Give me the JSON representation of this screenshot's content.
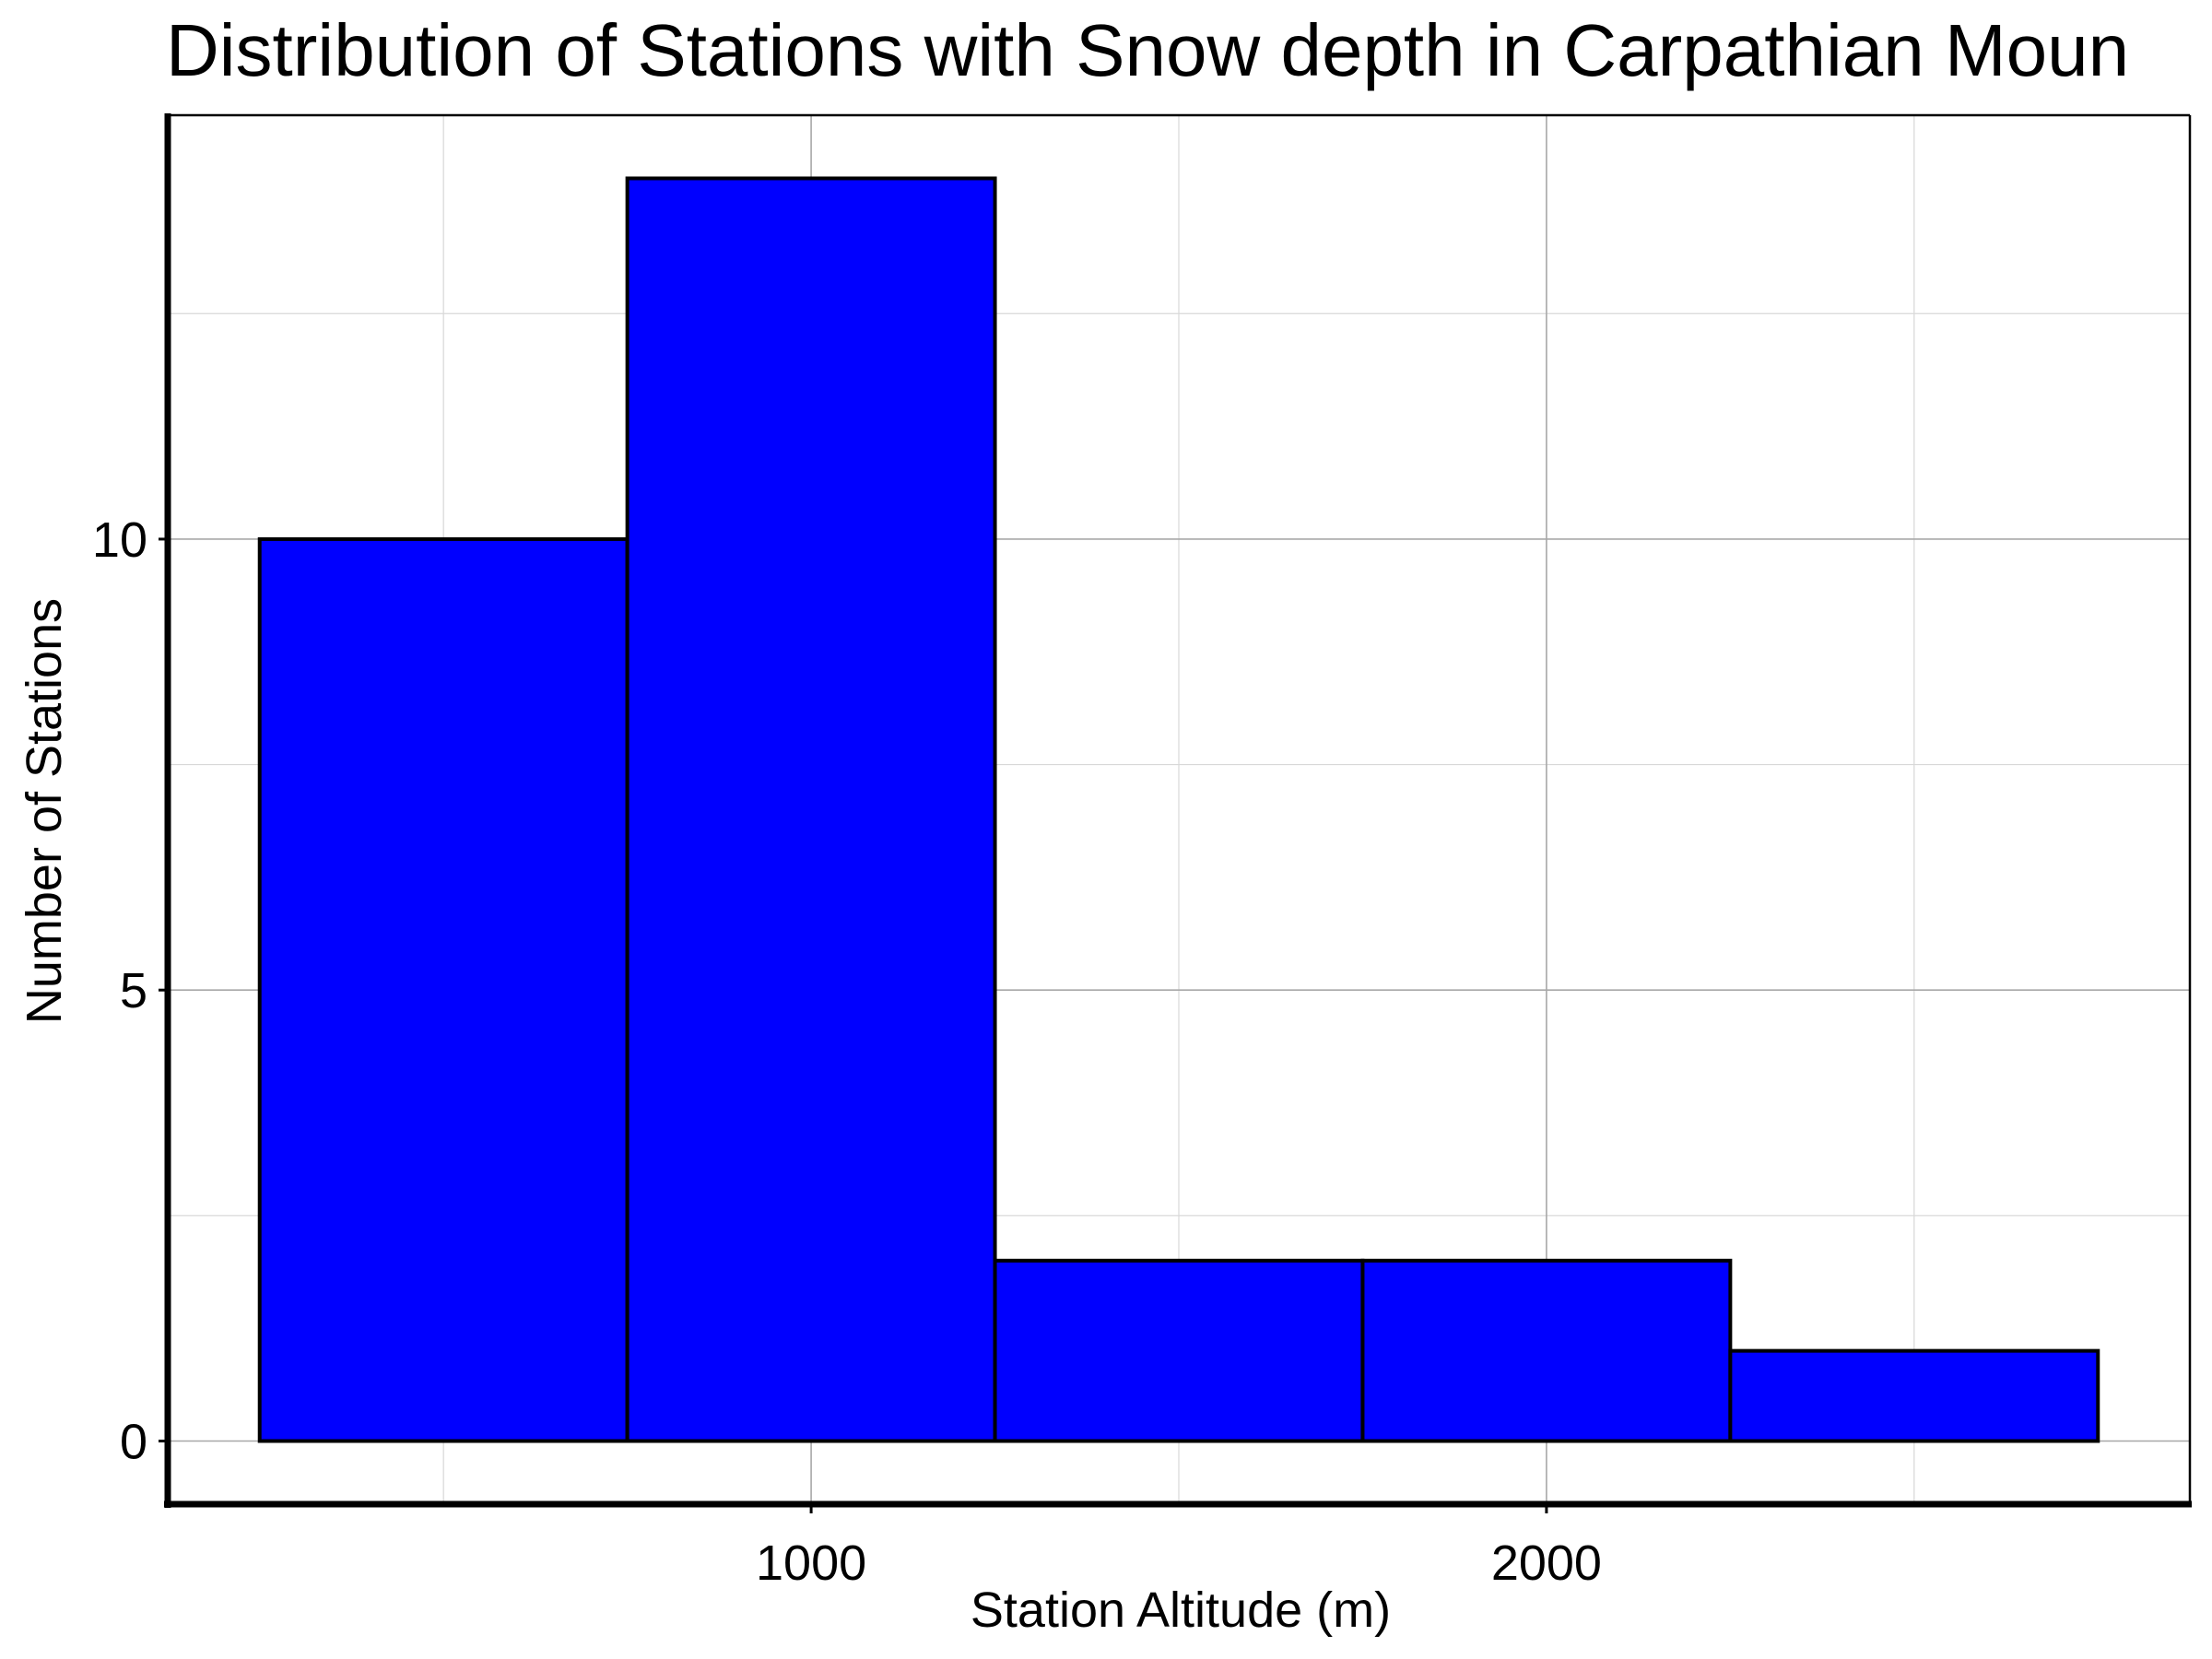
{
  "chart_data": {
    "type": "bar",
    "title": "Distribution of Stations with Snow depth in Carpathian Moun",
    "xlabel": "Station Altitude (m)",
    "ylabel": "Number of Stations",
    "bins": [
      {
        "start": 250,
        "end": 750,
        "count": 10
      },
      {
        "start": 750,
        "end": 1250,
        "count": 14
      },
      {
        "start": 1250,
        "end": 1750,
        "count": 2
      },
      {
        "start": 1750,
        "end": 2250,
        "count": 2
      },
      {
        "start": 2250,
        "end": 2750,
        "count": 1
      }
    ],
    "xlim": [
      125,
      2875
    ],
    "ylim": [
      -0.7,
      14.7
    ],
    "x_ticks": [
      1000,
      2000
    ],
    "x_minor_ticks": [
      500,
      1500,
      2500
    ],
    "y_ticks": [
      0,
      5,
      10
    ],
    "y_minor_ticks": [
      2.5,
      7.5,
      12.5
    ],
    "grid": true,
    "legend": "none",
    "bar_color": "#0000ff",
    "bar_edge_color": "#000000"
  }
}
